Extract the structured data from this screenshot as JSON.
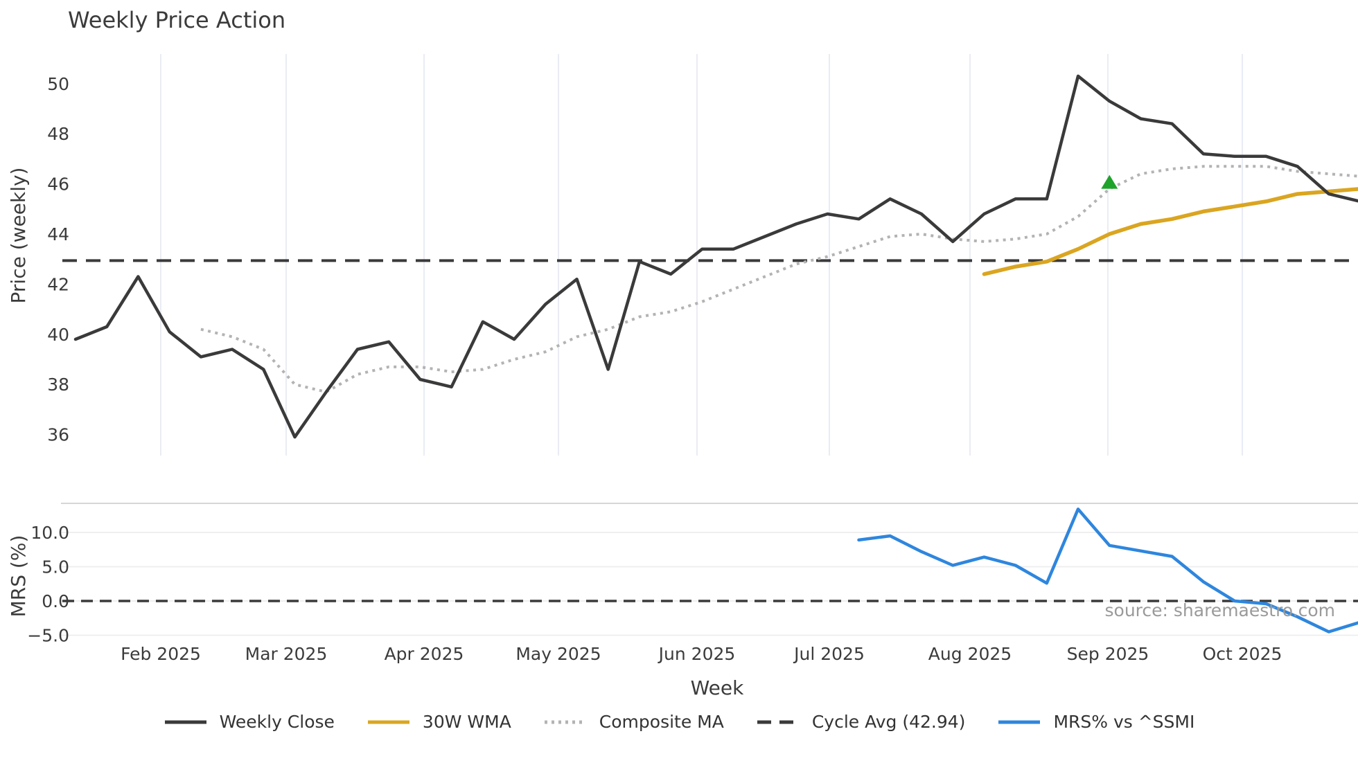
{
  "title": "Weekly Price Action",
  "source": "source: sharemaestro.com",
  "colors": {
    "close": "#3a3a3a",
    "wma": "#DAA520",
    "composite": "#b3b3b3",
    "cycle": "#3a3a3a",
    "mrs": "#2e86de",
    "marker": "#1fa32b",
    "grid_vertical": "#e9ecf4",
    "grid_horizontal": "#ededed",
    "spine": "#d0d0d0",
    "text": "#3b3b3b",
    "muted": "#9a9a9a",
    "background": "#ffffff"
  },
  "axes": {
    "price_label": "Price (weekly)",
    "mrs_label": "MRS (%)",
    "x_label": "Week",
    "price_ticks": [
      "50",
      "48",
      "46",
      "44",
      "42",
      "40",
      "38",
      "36"
    ],
    "price_tick_values": [
      50,
      48,
      46,
      44,
      42,
      40,
      38,
      36
    ],
    "mrs_ticks": [
      "10.0",
      "5.0",
      "0.0",
      "−5.0"
    ],
    "mrs_tick_values": [
      10,
      5,
      0,
      -5
    ],
    "month_labels": [
      "Feb 2025",
      "Mar 2025",
      "Apr 2025",
      "May 2025",
      "Jun 2025",
      "Jul 2025",
      "Aug 2025",
      "Sep 2025",
      "Oct 2025"
    ]
  },
  "legend": {
    "items": [
      {
        "label": "Weekly Close",
        "swatch": "solid",
        "color": "#3a3a3a"
      },
      {
        "label": "30W WMA",
        "swatch": "solid",
        "color": "#DAA520"
      },
      {
        "label": "Composite MA",
        "swatch": "dotted",
        "color": "#b3b3b3"
      },
      {
        "label": "Cycle Avg (42.94)",
        "swatch": "dashed",
        "color": "#3a3a3a"
      },
      {
        "label": "MRS% vs ^SSMI",
        "swatch": "solid",
        "color": "#2e86de"
      }
    ]
  },
  "chart_data": [
    {
      "type": "line",
      "panel": "price",
      "title": "Weekly Price Action",
      "xlabel": "Week",
      "ylabel": "Price (weekly)",
      "ylim": [
        35.2,
        51.4
      ],
      "grid": "vertical-months",
      "legend_position": "bottom",
      "x_ticks": [
        "Feb 2025",
        "Mar 2025",
        "Apr 2025",
        "May 2025",
        "Jun 2025",
        "Jul 2025",
        "Aug 2025",
        "Sep 2025",
        "Oct 2025"
      ],
      "x_weeks": [
        "2025-01-13",
        "2025-01-20",
        "2025-01-27",
        "2025-02-03",
        "2025-02-10",
        "2025-02-17",
        "2025-02-24",
        "2025-03-03",
        "2025-03-10",
        "2025-03-17",
        "2025-03-24",
        "2025-03-31",
        "2025-04-07",
        "2025-04-14",
        "2025-04-21",
        "2025-04-28",
        "2025-05-05",
        "2025-05-12",
        "2025-05-19",
        "2025-05-26",
        "2025-06-02",
        "2025-06-09",
        "2025-06-16",
        "2025-06-23",
        "2025-06-30",
        "2025-07-07",
        "2025-07-14",
        "2025-07-21",
        "2025-07-28",
        "2025-08-04",
        "2025-08-11",
        "2025-08-18",
        "2025-08-25",
        "2025-09-01",
        "2025-09-08",
        "2025-09-15",
        "2025-09-22",
        "2025-09-29",
        "2025-10-06",
        "2025-10-13",
        "2025-10-20",
        "2025-10-27"
      ],
      "series": [
        {
          "name": "Weekly Close",
          "style": "solid",
          "color": "#3a3a3a",
          "x_start": "2025-01-13",
          "values": [
            39.8,
            40.3,
            42.3,
            40.1,
            39.1,
            39.4,
            38.6,
            35.9,
            37.7,
            39.4,
            39.7,
            38.2,
            37.9,
            40.5,
            39.8,
            41.2,
            42.2,
            38.6,
            42.9,
            42.4,
            43.4,
            43.4,
            43.9,
            44.4,
            44.8,
            44.6,
            45.4,
            44.8,
            43.7,
            44.8,
            45.4,
            45.4,
            50.3,
            49.3,
            48.6,
            48.4,
            47.2,
            47.1,
            47.1,
            46.7,
            45.6,
            45.3
          ]
        },
        {
          "name": "30W WMA",
          "style": "solid",
          "color": "#DAA520",
          "x_start": "2025-08-04",
          "values": [
            42.4,
            42.7,
            42.9,
            43.4,
            44.0,
            44.4,
            44.6,
            44.9,
            45.1,
            45.3,
            45.6,
            45.7,
            45.8
          ]
        },
        {
          "name": "Composite MA",
          "style": "dotted",
          "color": "#b3b3b3",
          "x_start": "2025-02-10",
          "values": [
            40.2,
            39.9,
            39.4,
            38.0,
            37.7,
            38.4,
            38.7,
            38.7,
            38.5,
            38.6,
            39.0,
            39.3,
            39.9,
            40.2,
            40.7,
            40.9,
            41.3,
            41.8,
            42.3,
            42.8,
            43.1,
            43.5,
            43.9,
            44.0,
            43.8,
            43.7,
            43.8,
            44.0,
            44.7,
            45.8,
            46.4,
            46.6,
            46.7,
            46.7,
            46.7,
            46.5,
            46.4,
            46.3
          ]
        },
        {
          "name": "Cycle Avg (42.94)",
          "style": "dashed",
          "color": "#3a3a3a",
          "constant": 42.94
        }
      ],
      "markers": [
        {
          "date": "2025-09-01",
          "value": 46.0,
          "shape": "triangle-up",
          "color": "#1fa32b",
          "meaning": "signal marker"
        }
      ]
    },
    {
      "type": "line",
      "panel": "mrs",
      "xlabel": "Week",
      "ylabel": "MRS (%)",
      "ylim": [
        -6.8,
        14.2
      ],
      "grid": "horizontal",
      "y_ticks": [
        10.0,
        5.0,
        0.0,
        -5.0
      ],
      "zero_line": {
        "style": "dashed",
        "value": 0.0,
        "color": "#3a3a3a"
      },
      "series": [
        {
          "name": "MRS% vs ^SSMI",
          "style": "solid",
          "color": "#2e86de",
          "x_start": "2025-07-07",
          "values": [
            8.9,
            9.5,
            7.2,
            5.2,
            6.4,
            5.2,
            2.6,
            13.4,
            8.1,
            7.3,
            6.5,
            2.8,
            0.0,
            -0.4,
            -2.3,
            -4.5,
            -3.1
          ]
        }
      ]
    }
  ]
}
